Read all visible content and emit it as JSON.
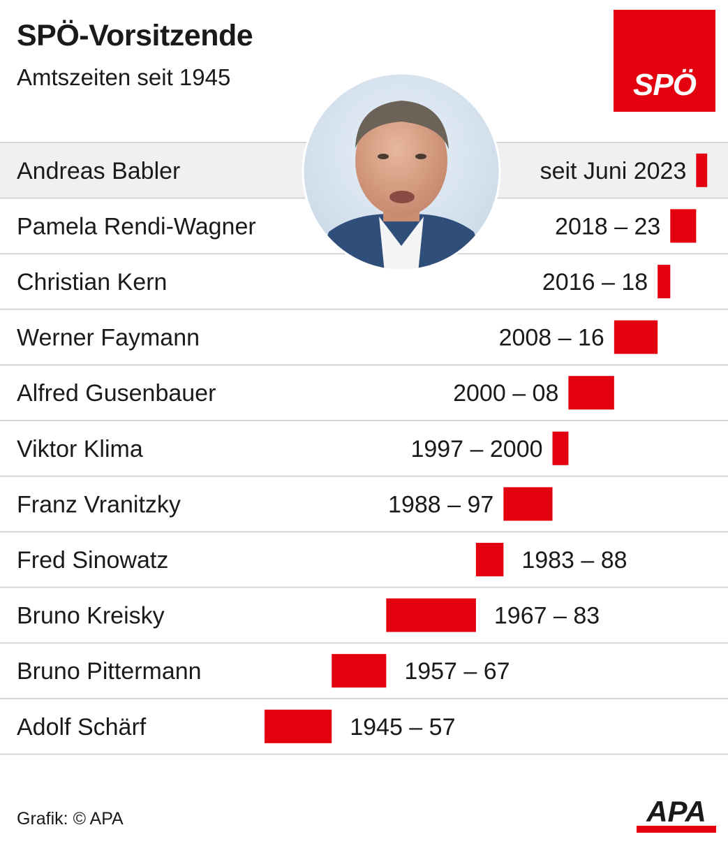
{
  "header": {
    "title": "SPÖ-Vorsitzende",
    "subtitle": "Amtszeiten seit 1945"
  },
  "party_logo": {
    "text": "SPÖ",
    "color": "#e3000f"
  },
  "footer": {
    "credit": "Grafik: © APA",
    "agency_logo": "APA"
  },
  "colors": {
    "bar": "#e3000f",
    "highlight_row": "#f0f0f0",
    "divider": "#d5d5d5"
  },
  "chart_data": {
    "type": "bar",
    "orientation": "horizontal-timeline",
    "time_range": [
      1945,
      2025
    ],
    "highlight_index": 0,
    "rows": [
      {
        "name": "Andreas Babler",
        "period": "seit Juni 2023",
        "start": 2023.4,
        "end": 2025.4
      },
      {
        "name": "Pamela Rendi-Wagner",
        "period": "2018 – 23",
        "start": 2018.7,
        "end": 2023.4
      },
      {
        "name": "Christian Kern",
        "period": "2016 – 18",
        "start": 2016.4,
        "end": 2018.7
      },
      {
        "name": "Werner Faymann",
        "period": "2008 – 16",
        "start": 2008.5,
        "end": 2016.4
      },
      {
        "name": "Alfred Gusenbauer",
        "period": "2000 – 08",
        "start": 2000.2,
        "end": 2008.5
      },
      {
        "name": "Viktor Klima",
        "period": "1997 – 2000",
        "start": 1997.3,
        "end": 2000.2
      },
      {
        "name": "Franz Vranitzky",
        "period": "1988 – 97",
        "start": 1988.4,
        "end": 1997.3
      },
      {
        "name": "Fred Sinowatz",
        "period": "1983 – 88",
        "start": 1983.4,
        "end": 1988.4
      },
      {
        "name": "Bruno Kreisky",
        "period": "1967 – 83",
        "start": 1967.1,
        "end": 1983.4
      },
      {
        "name": "Bruno Pittermann",
        "period": "1957 – 67",
        "start": 1957.2,
        "end": 1967.1
      },
      {
        "name": "Adolf Schärf",
        "period": "1945 – 57",
        "start": 1945.0,
        "end": 1957.2
      }
    ]
  }
}
